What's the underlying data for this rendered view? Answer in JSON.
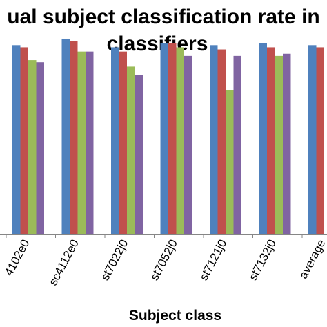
{
  "chart_data": {
    "type": "bar",
    "title_lines": [
      "ual subject  classification rate in",
      "classifiers"
    ],
    "xlabel": "Subject class",
    "ylabel": "",
    "categories": [
      "4102e0",
      "sc4112e0",
      "st7022j0",
      "st7052j0",
      "st7121j0",
      "st7132j0",
      "average"
    ],
    "ylim": [
      0,
      100
    ],
    "grid": false,
    "legend": "none",
    "series": [
      {
        "color": "#4f81bd",
        "values": [
          88,
          91,
          87,
          89,
          88,
          89,
          88
        ]
      },
      {
        "color": "#c0504d",
        "values": [
          87,
          90,
          85,
          89,
          86,
          87,
          87
        ]
      },
      {
        "color": "#9bbb59",
        "values": [
          81,
          85,
          78,
          87,
          67,
          83,
          null
        ]
      },
      {
        "color": "#8064a2",
        "values": [
          80,
          85,
          74,
          83,
          83,
          84,
          null
        ]
      }
    ]
  }
}
